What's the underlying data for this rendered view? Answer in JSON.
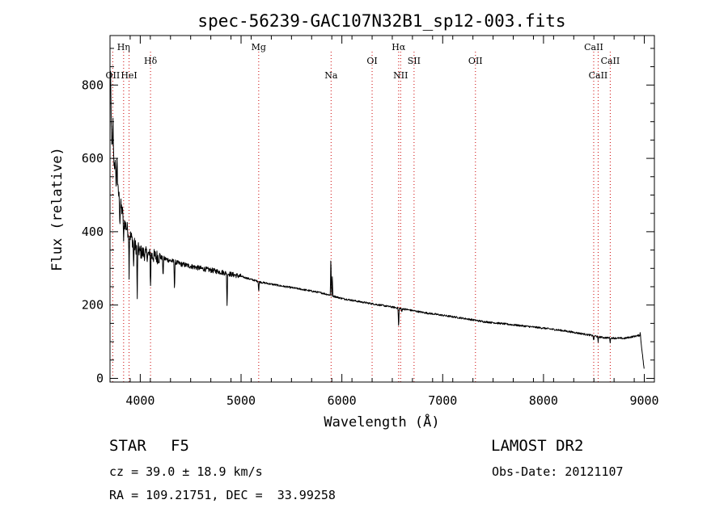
{
  "chart_data": {
    "type": "line",
    "title": "spec-56239-GAC107N32B1_sp12-003.fits",
    "xlabel": "Wavelength (Å)",
    "ylabel": "Flux (relative)",
    "xlim": [
      3700,
      9100
    ],
    "ylim": [
      -10,
      935
    ],
    "xticks": [
      4000,
      5000,
      6000,
      7000,
      8000,
      9000
    ],
    "yticks": [
      0,
      200,
      400,
      600,
      800
    ],
    "grid": false,
    "series": [
      {
        "line_color": "#000000",
        "continuum": [
          [
            3700,
            760
          ],
          [
            3720,
            640
          ],
          [
            3760,
            540
          ],
          [
            3800,
            480
          ],
          [
            3850,
            420
          ],
          [
            3900,
            390
          ],
          [
            3950,
            360
          ],
          [
            4000,
            345
          ],
          [
            4100,
            335
          ],
          [
            4200,
            330
          ],
          [
            4400,
            312
          ],
          [
            4600,
            300
          ],
          [
            4800,
            290
          ],
          [
            5000,
            278
          ],
          [
            5200,
            262
          ],
          [
            5400,
            252
          ],
          [
            5600,
            243
          ],
          [
            5800,
            233
          ],
          [
            5870,
            228
          ],
          [
            6000,
            218
          ],
          [
            6200,
            208
          ],
          [
            6400,
            199
          ],
          [
            6600,
            190
          ],
          [
            6800,
            180
          ],
          [
            7000,
            172
          ],
          [
            7200,
            164
          ],
          [
            7400,
            155
          ],
          [
            7600,
            149
          ],
          [
            7800,
            143
          ],
          [
            8000,
            137
          ],
          [
            8200,
            130
          ],
          [
            8400,
            121
          ],
          [
            8600,
            111
          ],
          [
            8800,
            109
          ],
          [
            8960,
            118
          ],
          [
            9000,
            20
          ]
        ],
        "features": [
          {
            "x": 3705,
            "y": 860
          },
          {
            "x": 3730,
            "y": 700
          },
          {
            "x": 3750,
            "y": 590
          },
          {
            "x": 3770,
            "y": 620
          },
          {
            "x": 3798,
            "y": 420
          },
          {
            "x": 3835,
            "y": 360
          },
          {
            "x": 3889,
            "y": 290
          },
          {
            "x": 3934,
            "y": 300
          },
          {
            "x": 3970,
            "y": 205
          },
          {
            "x": 4102,
            "y": 250
          },
          {
            "x": 4226,
            "y": 270
          },
          {
            "x": 4340,
            "y": 235
          },
          {
            "x": 4861,
            "y": 195
          },
          {
            "x": 5175,
            "y": 235
          },
          {
            "x": 5891,
            "y": 340
          },
          {
            "x": 5905,
            "y": 275
          },
          {
            "x": 6563,
            "y": 135
          },
          {
            "x": 6595,
            "y": 180
          },
          {
            "x": 8498,
            "y": 100
          },
          {
            "x": 8542,
            "y": 97
          },
          {
            "x": 8662,
            "y": 98
          },
          {
            "x": 8960,
            "y": 125
          }
        ]
      }
    ],
    "lines": [
      {
        "label": "OII",
        "x": 3727,
        "row": 2
      },
      {
        "label": "Hη",
        "x": 3835,
        "row": 0
      },
      {
        "label": "HeI",
        "x": 3889,
        "row": 2
      },
      {
        "label": "Hδ",
        "x": 4102,
        "row": 1
      },
      {
        "label": "Mg",
        "x": 5175,
        "row": 0
      },
      {
        "label": "Na",
        "x": 5893,
        "row": 2
      },
      {
        "label": "OI",
        "x": 6300,
        "row": 1
      },
      {
        "label": "Hα",
        "x": 6563,
        "row": 0
      },
      {
        "label": "NII",
        "x": 6583,
        "row": 2
      },
      {
        "label": "SII",
        "x": 6716,
        "row": 1
      },
      {
        "label": "OII",
        "x": 7325,
        "row": 1
      },
      {
        "label": "CaII",
        "x": 8498,
        "row": 0
      },
      {
        "label": "CaII",
        "x": 8542,
        "row": 2
      },
      {
        "label": "CaII",
        "x": 8662,
        "row": 1
      }
    ],
    "line_marker_color": "#cc0000"
  },
  "info": {
    "class": "STAR",
    "subclass": "F5",
    "survey": "LAMOST DR2",
    "cz": "cz = 39.0 ± 18.9 km/s",
    "obs_date": "Obs-Date: 20121107",
    "radec": "RA = 109.21751, DEC =  33.99258"
  }
}
